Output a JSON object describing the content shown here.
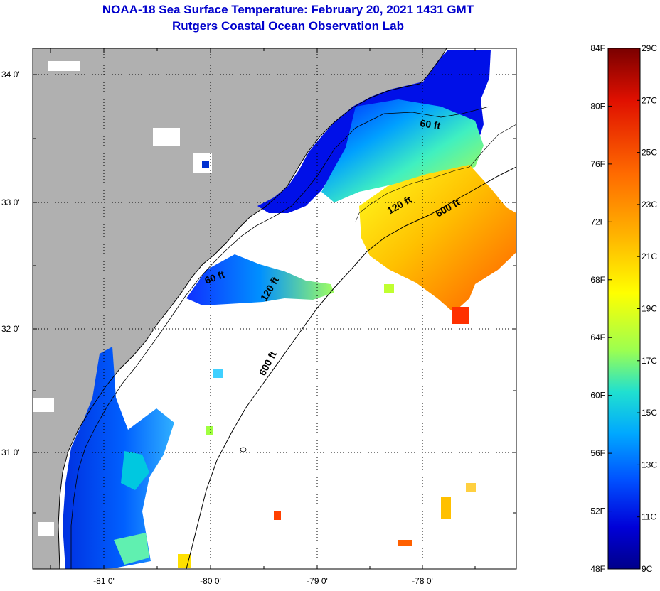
{
  "header": {
    "title": "NOAA-18 Sea Surface Temperature:  February 20, 2021 1431 GMT",
    "subtitle": "Rutgers Coastal Ocean Observation Lab"
  },
  "map": {
    "lat_labels": [
      "34 0'",
      "33 0'",
      "32 0'",
      "31 0'"
    ],
    "lon_labels": [
      "-81 0'",
      "-80 0'",
      "-79 0'",
      "-78 0'"
    ],
    "isobath_labels": {
      "north_60": "60 ft",
      "north_120": "120 ft",
      "north_600": "600 ft",
      "mid_60": "60 ft",
      "mid_120": "120 ft",
      "south_600": "600 ft"
    }
  },
  "colorbar": {
    "fahrenheit": [
      "84F",
      "80F",
      "76F",
      "72F",
      "68F",
      "64F",
      "60F",
      "56F",
      "52F",
      "48F"
    ],
    "celsius": [
      "29C",
      "27C",
      "25C",
      "23C",
      "21C",
      "19C",
      "17C",
      "15C",
      "13C",
      "11C",
      "9C"
    ],
    "gradient_colors": [
      "#7a0000",
      "#e01000",
      "#ff6a00",
      "#ffb400",
      "#ffff00",
      "#9cff50",
      "#20e0d0",
      "#00a8ff",
      "#0050ff",
      "#0000d8",
      "#00008a"
    ]
  }
}
